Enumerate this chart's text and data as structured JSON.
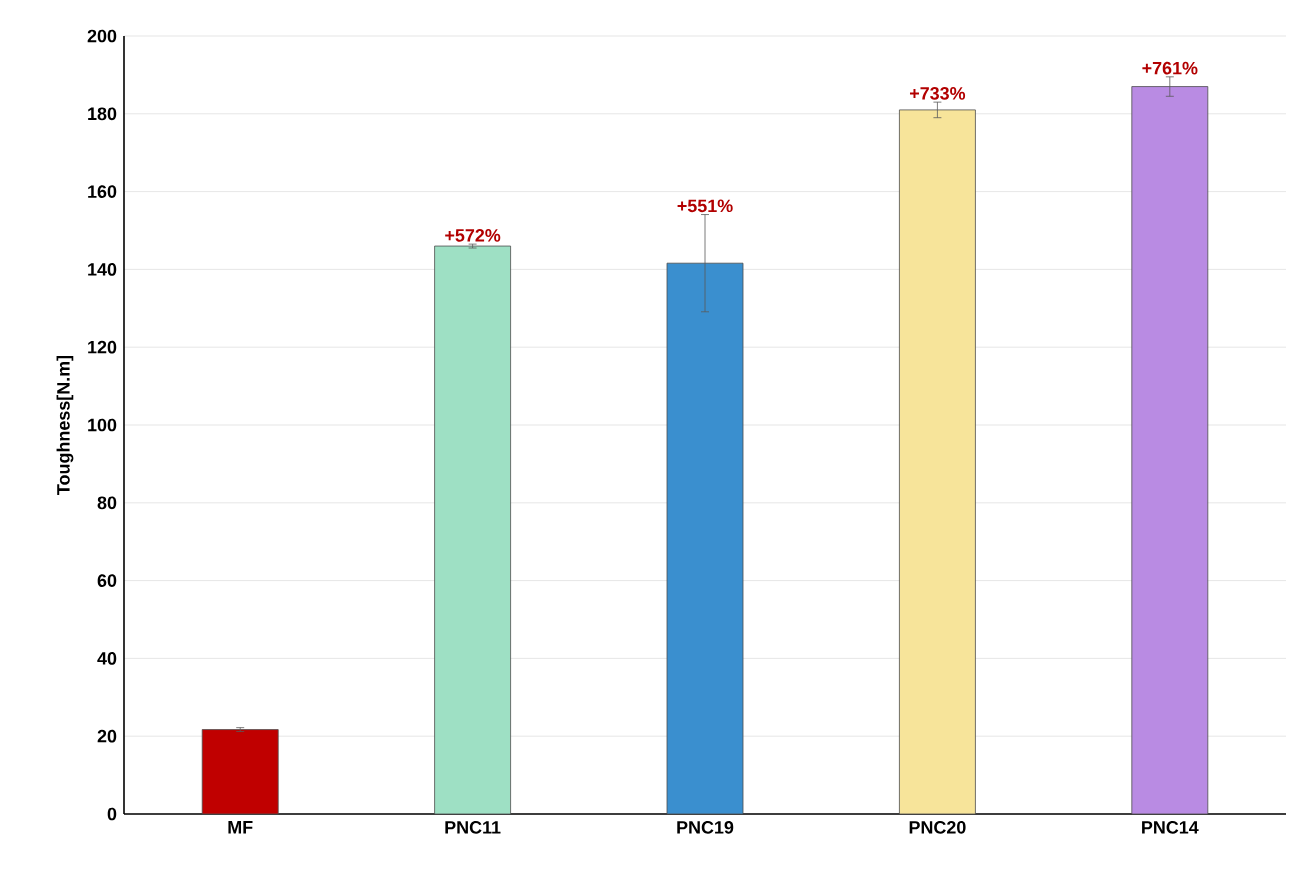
{
  "chart_data": {
    "type": "bar",
    "ylabel": "Toughness[N.m]",
    "categories": [
      "MF",
      "PNC11",
      "PNC19",
      "PNC20",
      "PNC14"
    ],
    "values": [
      21.7,
      146,
      141.6,
      181,
      187
    ],
    "errors": [
      0.5,
      0.5,
      12.5,
      2,
      2.5
    ],
    "colors": [
      "#c00000",
      "#9ee0c4",
      "#3a8fcf",
      "#f7e49a",
      "#b98be3"
    ],
    "annotations": [
      {
        "text": "+572%",
        "x": "PNC11",
        "y": 146.5
      },
      {
        "text": "+551%",
        "x": "PNC19",
        "y": 154.1
      },
      {
        "text": "+733%",
        "x": "PNC20",
        "y": 183
      },
      {
        "text": "+761%",
        "x": "PNC14",
        "y": 189.5
      }
    ],
    "ylim": [
      0,
      200
    ],
    "yticks": [
      0,
      20,
      40,
      60,
      80,
      100,
      120,
      140,
      160,
      180,
      200
    ],
    "grid": "y"
  }
}
